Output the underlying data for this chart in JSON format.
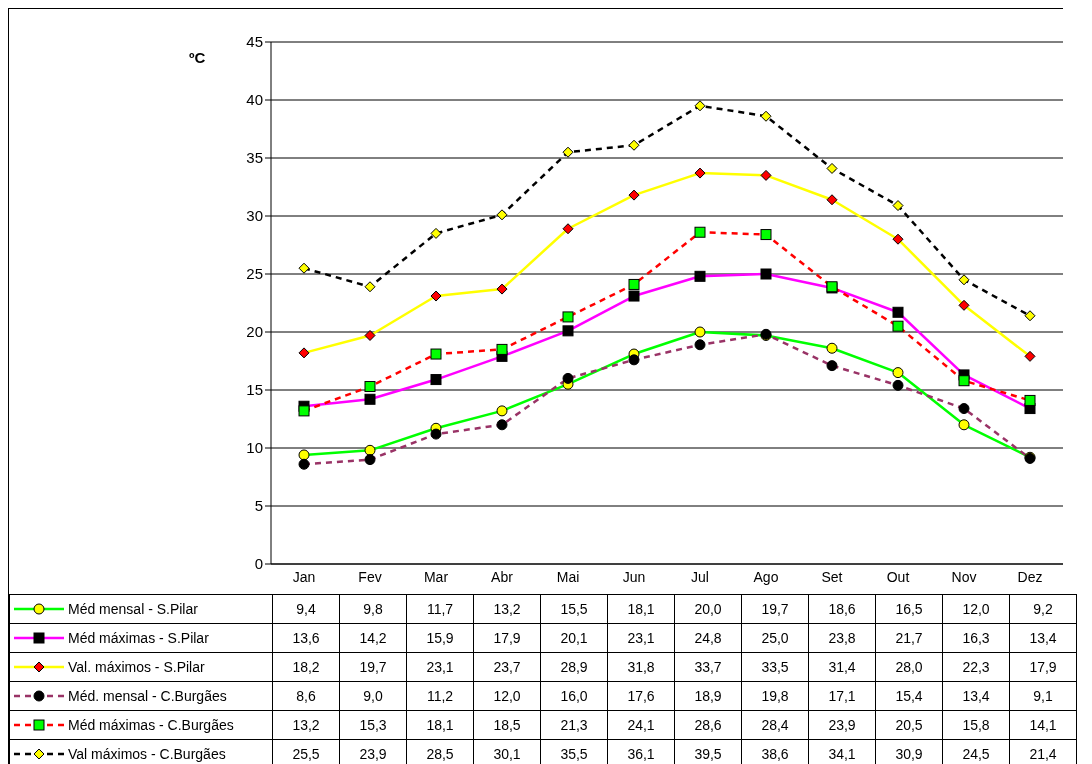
{
  "chart_data": {
    "type": "line",
    "ylabel": "ºC",
    "categories": [
      "Jan",
      "Fev",
      "Mar",
      "Abr",
      "Mai",
      "Jun",
      "Jul",
      "Ago",
      "Set",
      "Out",
      "Nov",
      "Dez"
    ],
    "ylim": [
      0,
      45
    ],
    "yticks": [
      0,
      5,
      10,
      15,
      20,
      25,
      30,
      35,
      40,
      45
    ],
    "grid": "y",
    "legend": "bottom",
    "series": [
      {
        "name": "Méd mensal - S.Pilar",
        "color": "#00ff00",
        "marker": "circle",
        "line_style": "solid",
        "colors": [
          "#ffff00",
          "#ffff00",
          "#ffff00",
          "#ffff00",
          "#ffff00",
          "#ffff00",
          "#ffff00",
          "#ffff00",
          "#ffff00",
          "#ffff00",
          "#ffff00",
          "#ffff00"
        ],
        "values": [
          9.4,
          9.8,
          11.7,
          13.2,
          15.5,
          18.1,
          20.0,
          19.7,
          18.6,
          16.5,
          12.0,
          9.2
        ],
        "value_labels": [
          "9,4",
          "9,8",
          "11,7",
          "13,2",
          "15,5",
          "18,1",
          "20,0",
          "19,7",
          "18,6",
          "16,5",
          "12,0",
          "9,2"
        ]
      },
      {
        "name": "Méd máximas - S.Pilar",
        "color": "#ff00ff",
        "marker": "square",
        "line_style": "solid",
        "colors": [
          "#000000",
          "#000000",
          "#000000",
          "#000000",
          "#000000",
          "#000000",
          "#000000",
          "#000000",
          "#000000",
          "#000000",
          "#000000",
          "#000000"
        ],
        "values": [
          13.6,
          14.2,
          15.9,
          17.9,
          20.1,
          23.1,
          24.8,
          25.0,
          23.8,
          21.7,
          16.3,
          13.4
        ],
        "value_labels": [
          "13,6",
          "14,2",
          "15,9",
          "17,9",
          "20,1",
          "23,1",
          "24,8",
          "25,0",
          "23,8",
          "21,7",
          "16,3",
          "13,4"
        ]
      },
      {
        "name": "Val. máximos - S.Pilar",
        "color": "#ffff00",
        "marker": "diamond",
        "line_style": "solid",
        "colors": [
          "#ff0000",
          "#ff0000",
          "#ff0000",
          "#ff0000",
          "#ff0000",
          "#ff0000",
          "#ff0000",
          "#ff0000",
          "#ff0000",
          "#ff0000",
          "#ff0000",
          "#ff0000"
        ],
        "values": [
          18.2,
          19.7,
          23.1,
          23.7,
          28.9,
          31.8,
          33.7,
          33.5,
          31.4,
          28.0,
          22.3,
          17.9
        ],
        "value_labels": [
          "18,2",
          "19,7",
          "23,1",
          "23,7",
          "28,9",
          "31,8",
          "33,7",
          "33,5",
          "31,4",
          "28,0",
          "22,3",
          "17,9"
        ]
      },
      {
        "name": "Méd. mensal - C.Burgães",
        "color": "#993366",
        "marker": "circle",
        "line_style": "dashed",
        "colors": [
          "#000000",
          "#000000",
          "#000000",
          "#000000",
          "#000000",
          "#000000",
          "#000000",
          "#000000",
          "#000000",
          "#000000",
          "#000000",
          "#000000"
        ],
        "values": [
          8.6,
          9.0,
          11.2,
          12.0,
          16.0,
          17.6,
          18.9,
          19.8,
          17.1,
          15.4,
          13.4,
          9.1
        ],
        "value_labels": [
          "8,6",
          "9,0",
          "11,2",
          "12,0",
          "16,0",
          "17,6",
          "18,9",
          "19,8",
          "17,1",
          "15,4",
          "13,4",
          "9,1"
        ]
      },
      {
        "name": "Méd máximas - C.Burgães",
        "color": "#ff0000",
        "marker": "square",
        "line_style": "dashed",
        "colors": [
          "#00ff00",
          "#00ff00",
          "#00ff00",
          "#00ff00",
          "#00ff00",
          "#00ff00",
          "#00ff00",
          "#00ff00",
          "#00ff00",
          "#00ff00",
          "#00ff00",
          "#00ff00"
        ],
        "values": [
          13.2,
          15.3,
          18.1,
          18.5,
          21.3,
          24.1,
          28.6,
          28.4,
          23.9,
          20.5,
          15.8,
          14.1
        ],
        "value_labels": [
          "13,2",
          "15,3",
          "18,1",
          "18,5",
          "21,3",
          "24,1",
          "28,6",
          "28,4",
          "23,9",
          "20,5",
          "15,8",
          "14,1"
        ]
      },
      {
        "name": "Val máximos - C.Burgães",
        "color": "#000000",
        "marker": "diamond",
        "line_style": "dashed",
        "colors": [
          "#ffff00",
          "#ffff00",
          "#ffff00",
          "#ffff00",
          "#ffff00",
          "#ffff00",
          "#ffff00",
          "#ffff00",
          "#ffff00",
          "#ffff00",
          "#ffff00",
          "#ffff00"
        ],
        "values": [
          25.5,
          23.9,
          28.5,
          30.1,
          35.5,
          36.1,
          39.5,
          38.6,
          34.1,
          30.9,
          24.5,
          21.4
        ],
        "value_labels": [
          "25,5",
          "23,9",
          "28,5",
          "30,1",
          "35,5",
          "36,1",
          "39,5",
          "38,6",
          "34,1",
          "30,9",
          "24,5",
          "21,4"
        ]
      }
    ]
  }
}
